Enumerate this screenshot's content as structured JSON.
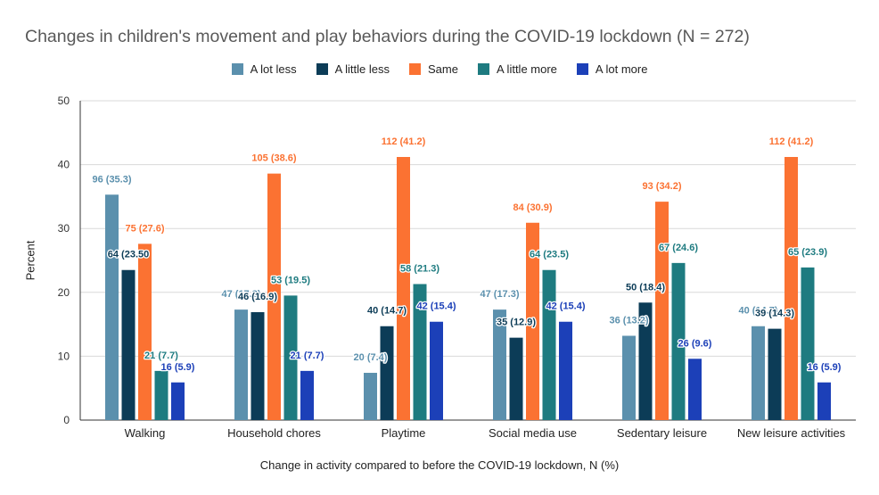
{
  "chart_data": {
    "type": "bar",
    "title": "Changes in children's movement and play behaviors during the COVID-19 lockdown (N = 272)",
    "xlabel": "Change in activity compared to before the COVID-19 lockdown, N (%)",
    "ylabel": "Percent",
    "ylim": [
      0,
      50
    ],
    "yticks": [
      0,
      10,
      20,
      30,
      40,
      50
    ],
    "grid": true,
    "legend_position": "top-center",
    "categories": [
      "Walking",
      "Household chores",
      "Playtime",
      "Social media use",
      "Sedentary leisure",
      "New leisure activities"
    ],
    "series": [
      {
        "name": "A lot less",
        "color": "#5b90ad",
        "values": [
          35.3,
          17.3,
          7.4,
          17.3,
          13.2,
          14.7
        ],
        "labels": [
          "96 (35.3)",
          "47 (17.3)",
          "20 (7.4)",
          "47 (17.3)",
          "36 (13.2)",
          "40 (14.7)"
        ]
      },
      {
        "name": "A little less",
        "color": "#0c3c57",
        "values": [
          23.5,
          16.9,
          14.7,
          12.9,
          18.4,
          14.3
        ],
        "labels": [
          "64 (23.50",
          "46 (16.9)",
          "40 (14.7)",
          "35 (12.9)",
          "50 (18.4)",
          "39 (14.3)"
        ]
      },
      {
        "name": "Same",
        "color": "#fb7232",
        "values": [
          27.6,
          38.6,
          41.2,
          30.9,
          34.2,
          41.2
        ],
        "labels": [
          "75 (27.6)",
          "105 (38.6)",
          "112 (41.2)",
          "84 (30.9)",
          "93 (34.2)",
          "112 (41.2)"
        ]
      },
      {
        "name": "A little more",
        "color": "#1e7b80",
        "values": [
          7.7,
          19.5,
          21.3,
          23.5,
          24.6,
          23.9
        ],
        "labels": [
          "21 (7.7)",
          "53 (19.5)",
          "58 (21.3)",
          "64 (23.5)",
          "67 (24.6)",
          "65 (23.9)"
        ]
      },
      {
        "name": "A lot more",
        "color": "#1c40b8",
        "values": [
          5.9,
          7.7,
          15.4,
          15.4,
          9.6,
          5.9
        ],
        "labels": [
          "16 (5.9)",
          "21 (7.7)",
          "42 (15.4)",
          "42 (15.4)",
          "26 (9.6)",
          "16 (5.9)"
        ]
      }
    ]
  }
}
